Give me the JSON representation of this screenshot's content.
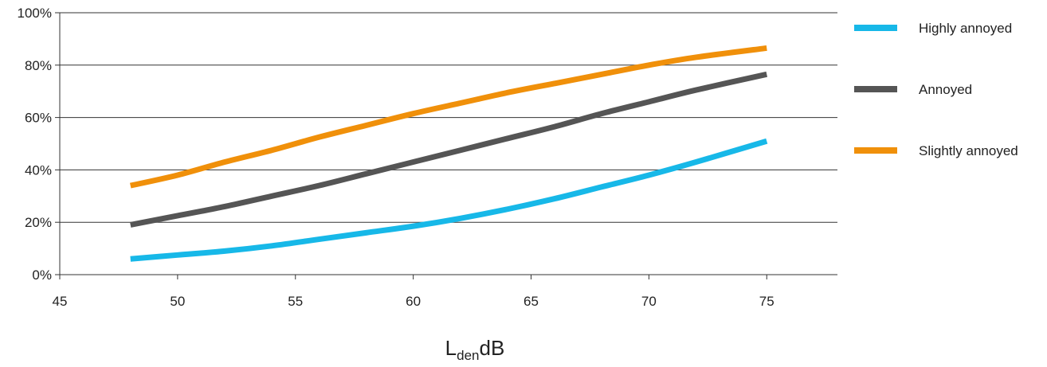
{
  "chart_data": {
    "type": "line",
    "xlabel": "L",
    "xlabel_subscript": "den",
    "xlabel_unit": "dB",
    "xlim": [
      45,
      78
    ],
    "ylim": [
      0,
      100
    ],
    "xticks": [
      45,
      50,
      55,
      60,
      65,
      70,
      75
    ],
    "yticks": [
      0,
      20,
      40,
      60,
      80,
      100
    ],
    "ytick_suffix": "%",
    "grid": "horizontal",
    "legend_position": "right",
    "series": [
      {
        "name": "Highly annoyed",
        "color": "#17b8e8",
        "x": [
          48,
          50,
          52,
          54,
          56,
          58,
          60,
          62,
          64,
          66,
          68,
          70,
          72,
          75
        ],
        "y": [
          6,
          7.5,
          9,
          11,
          13.5,
          16,
          18.5,
          21.5,
          25,
          29,
          33.5,
          38,
          43,
          51
        ]
      },
      {
        "name": "Annoyed",
        "color": "#555555",
        "x": [
          48,
          50,
          52,
          54,
          56,
          58,
          60,
          62,
          64,
          66,
          68,
          70,
          72,
          75
        ],
        "y": [
          19,
          22.5,
          26,
          30,
          34,
          38.5,
          43,
          47.5,
          52,
          56.5,
          61.5,
          66,
          70.5,
          76.5
        ]
      },
      {
        "name": "Slightly annoyed",
        "color": "#f0900a",
        "x": [
          48,
          50,
          52,
          54,
          56,
          58,
          60,
          62,
          64,
          66,
          68,
          70,
          72,
          75
        ],
        "y": [
          34,
          38,
          43,
          47.5,
          52.5,
          57,
          61.5,
          65.5,
          69.5,
          73,
          76.5,
          80,
          83,
          86.5
        ]
      }
    ]
  }
}
